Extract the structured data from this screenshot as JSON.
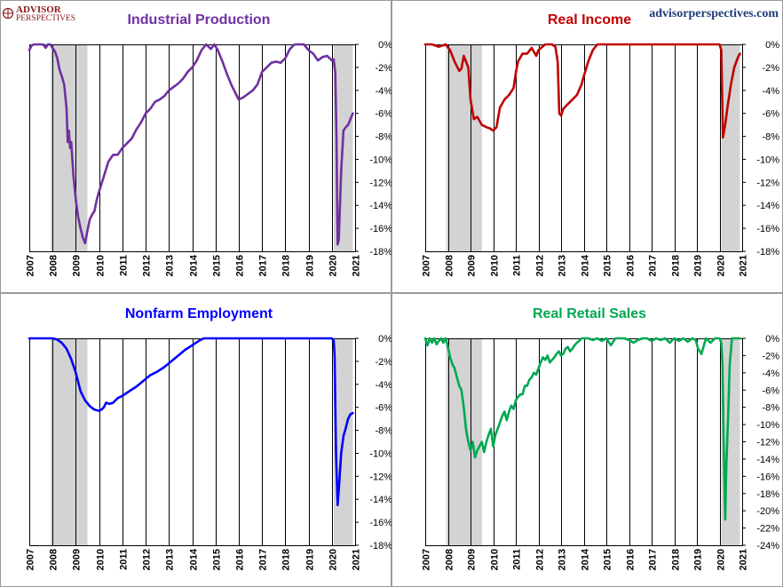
{
  "branding": {
    "logo_line1": "ADVISOR",
    "logo_line2": "PERSPECTIVES",
    "website": "advisorperspectives.com",
    "logo_color": "#8b1a1a",
    "website_color": "#1f3d7a"
  },
  "recession_color": "#d3d3d3",
  "chart_data": [
    {
      "type": "line",
      "title": "Industrial Production",
      "color": "#7030a0",
      "x_tick_labels": [
        "2007",
        "2008",
        "2009",
        "2010",
        "2011",
        "2012",
        "2013",
        "2014",
        "2015",
        "2016",
        "2017",
        "2018",
        "2019",
        "2020",
        "2021"
      ],
      "y_tick_labels": [
        "0%",
        "-2%",
        "-4%",
        "-6%",
        "-8%",
        "-10%",
        "-12%",
        "-14%",
        "-16%",
        "-18%"
      ],
      "xlim": [
        2007.0,
        2021.0
      ],
      "ylim": [
        -18,
        0
      ],
      "recessions": [
        [
          2007.92,
          2009.5
        ],
        [
          2020.08,
          2020.9
        ]
      ],
      "series": [
        {
          "x": [
            2007.0,
            2007.1,
            2007.2,
            2007.3,
            2007.4,
            2007.5,
            2007.6,
            2007.7,
            2007.8,
            2007.9,
            2008.0,
            2008.1,
            2008.2,
            2008.3,
            2008.4,
            2008.5,
            2008.6,
            2008.65,
            2008.7,
            2008.75,
            2008.8,
            2008.9,
            2009.0,
            2009.1,
            2009.2,
            2009.3,
            2009.4,
            2009.5,
            2009.6,
            2009.7,
            2009.8,
            2009.9,
            2010.0,
            2010.2,
            2010.4,
            2010.6,
            2010.8,
            2011.0,
            2011.2,
            2011.4,
            2011.6,
            2011.8,
            2012.0,
            2012.2,
            2012.4,
            2012.6,
            2012.8,
            2013.0,
            2013.2,
            2013.4,
            2013.6,
            2013.8,
            2014.0,
            2014.2,
            2014.4,
            2014.6,
            2014.8,
            2014.95,
            2015.1,
            2015.3,
            2015.5,
            2015.7,
            2015.9,
            2016.0,
            2016.2,
            2016.4,
            2016.6,
            2016.8,
            2017.0,
            2017.2,
            2017.4,
            2017.6,
            2017.8,
            2018.0,
            2018.2,
            2018.4,
            2018.6,
            2018.8,
            2019.0,
            2019.2,
            2019.4,
            2019.6,
            2019.8,
            2019.95,
            2020.0,
            2020.08,
            2020.15,
            2020.2,
            2020.25,
            2020.3,
            2020.4,
            2020.5,
            2020.6,
            2020.7,
            2020.8,
            2020.9
          ],
          "y": [
            -0.5,
            -0.1,
            0,
            0,
            0,
            0,
            0,
            -0.3,
            0,
            0,
            -0.3,
            -0.6,
            -1.2,
            -2.2,
            -2.8,
            -3.5,
            -5.5,
            -8.5,
            -7.5,
            -9.0,
            -8.5,
            -11.5,
            -13.5,
            -15.0,
            -16.0,
            -16.8,
            -17.3,
            -16.2,
            -15.2,
            -14.8,
            -14.5,
            -13.5,
            -12.8,
            -11.5,
            -10.2,
            -9.6,
            -9.6,
            -9.0,
            -8.6,
            -8.2,
            -7.4,
            -6.8,
            -6.0,
            -5.6,
            -5.0,
            -4.8,
            -4.5,
            -4.0,
            -3.7,
            -3.4,
            -3.0,
            -2.4,
            -2.0,
            -1.4,
            -0.5,
            0,
            -0.4,
            0,
            -0.5,
            -1.5,
            -2.6,
            -3.6,
            -4.4,
            -4.8,
            -4.6,
            -4.3,
            -4.0,
            -3.5,
            -2.4,
            -2.0,
            -1.6,
            -1.5,
            -1.6,
            -1.2,
            -0.4,
            0,
            0,
            0,
            -0.5,
            -0.8,
            -1.4,
            -1.1,
            -1.0,
            -1.3,
            -1.4,
            -1.3,
            -2.5,
            -8.0,
            -17.4,
            -17.0,
            -11.0,
            -7.5,
            -7.2,
            -7.0,
            -6.5,
            -6.0
          ]
        }
      ]
    },
    {
      "type": "line",
      "title": "Real Income",
      "color": "#c00000",
      "x_tick_labels": [
        "2007",
        "2008",
        "2009",
        "2010",
        "2011",
        "2012",
        "2013",
        "2014",
        "2015",
        "2016",
        "2017",
        "2018",
        "2019",
        "2020",
        "2021"
      ],
      "y_tick_labels": [
        "0%",
        "-2%",
        "-4%",
        "-6%",
        "-8%",
        "-10%",
        "-12%",
        "-14%",
        "-16%",
        "-18%"
      ],
      "xlim": [
        2007.0,
        2021.0
      ],
      "ylim": [
        -18,
        0
      ],
      "recessions": [
        [
          2007.92,
          2009.5
        ],
        [
          2020.08,
          2020.9
        ]
      ],
      "series": [
        {
          "x": [
            2007.0,
            2007.3,
            2007.6,
            2007.9,
            2008.1,
            2008.3,
            2008.5,
            2008.6,
            2008.7,
            2008.9,
            2009.0,
            2009.15,
            2009.3,
            2009.5,
            2009.7,
            2009.85,
            2010.0,
            2010.15,
            2010.3,
            2010.5,
            2010.7,
            2010.9,
            2011.0,
            2011.1,
            2011.3,
            2011.5,
            2011.7,
            2011.9,
            2012.0,
            2012.3,
            2012.6,
            2012.75,
            2012.85,
            2012.92,
            2013.0,
            2013.1,
            2013.3,
            2013.5,
            2013.7,
            2013.9,
            2014.0,
            2014.2,
            2014.4,
            2014.6,
            2014.8,
            2015.0,
            2015.2,
            2015.4,
            2015.7,
            2016.0,
            2016.5,
            2017.0,
            2017.5,
            2018.0,
            2018.5,
            2019.0,
            2019.5,
            2019.8,
            2020.0,
            2020.08,
            2020.15,
            2020.25,
            2020.35,
            2020.5,
            2020.65,
            2020.8,
            2020.9
          ],
          "y": [
            0,
            0,
            -0.2,
            0,
            -0.5,
            -1.5,
            -2.3,
            -2.1,
            -1.0,
            -2.0,
            -4.8,
            -6.5,
            -6.3,
            -7.0,
            -7.2,
            -7.3,
            -7.5,
            -7.2,
            -5.5,
            -4.8,
            -4.4,
            -3.8,
            -2.5,
            -1.5,
            -0.8,
            -0.8,
            -0.3,
            -1.0,
            -0.5,
            0,
            0,
            -0.2,
            -1.5,
            -6.0,
            -6.2,
            -5.6,
            -5.2,
            -4.8,
            -4.4,
            -3.5,
            -2.8,
            -1.5,
            -0.5,
            0,
            0,
            0,
            0,
            0,
            0,
            0,
            0,
            0,
            0,
            0,
            0,
            0,
            0,
            0,
            0,
            -0.5,
            -8.1,
            -7.0,
            -5.5,
            -3.5,
            -2.0,
            -1.2,
            -0.8
          ]
        }
      ]
    },
    {
      "type": "line",
      "title": "Nonfarm Employment",
      "color": "#0000ff",
      "x_tick_labels": [
        "2007",
        "2008",
        "2009",
        "2010",
        "2011",
        "2012",
        "2013",
        "2014",
        "2015",
        "2016",
        "2017",
        "2018",
        "2019",
        "2020",
        "2021"
      ],
      "y_tick_labels": [
        "0%",
        "-2%",
        "-4%",
        "-6%",
        "-8%",
        "-10%",
        "-12%",
        "-14%",
        "-16%",
        "-18%"
      ],
      "xlim": [
        2007.0,
        2021.0
      ],
      "ylim": [
        -18,
        0
      ],
      "recessions": [
        [
          2007.92,
          2009.5
        ],
        [
          2020.08,
          2020.9
        ]
      ],
      "series": [
        {
          "x": [
            2007.0,
            2007.5,
            2008.0,
            2008.2,
            2008.4,
            2008.6,
            2008.8,
            2009.0,
            2009.2,
            2009.4,
            2009.6,
            2009.8,
            2010.0,
            2010.1,
            2010.2,
            2010.3,
            2010.45,
            2010.6,
            2010.8,
            2011.0,
            2011.3,
            2011.6,
            2011.9,
            2012.2,
            2012.5,
            2012.8,
            2013.1,
            2013.4,
            2013.7,
            2014.0,
            2014.3,
            2014.5,
            2015.0,
            2016.0,
            2017.0,
            2018.0,
            2019.0,
            2020.0,
            2020.08,
            2020.12,
            2020.18,
            2020.25,
            2020.3,
            2020.4,
            2020.5,
            2020.6,
            2020.7,
            2020.8,
            2020.9
          ],
          "y": [
            0,
            0,
            0,
            -0.1,
            -0.4,
            -0.9,
            -1.8,
            -3.0,
            -4.6,
            -5.4,
            -5.9,
            -6.2,
            -6.3,
            -6.2,
            -6.0,
            -5.6,
            -5.7,
            -5.6,
            -5.2,
            -5.0,
            -4.6,
            -4.2,
            -3.7,
            -3.2,
            -2.9,
            -2.5,
            -2.0,
            -1.5,
            -1.0,
            -0.6,
            -0.2,
            0,
            0,
            0,
            0,
            0,
            0,
            0,
            -0.2,
            -1.5,
            -10.0,
            -14.5,
            -13.2,
            -10.0,
            -8.5,
            -7.8,
            -7.0,
            -6.6,
            -6.5
          ]
        }
      ]
    },
    {
      "type": "line",
      "title": "Real Retail Sales",
      "color": "#00a850",
      "x_tick_labels": [
        "2007",
        "2008",
        "2009",
        "2010",
        "2011",
        "2012",
        "2013",
        "2014",
        "2015",
        "2016",
        "2017",
        "2018",
        "2019",
        "2020",
        "2021"
      ],
      "y_tick_labels": [
        "0%",
        "-2%",
        "-4%",
        "-6%",
        "-8%",
        "-10%",
        "-12%",
        "-14%",
        "-16%",
        "-18%",
        "-20%",
        "-22%",
        "-24%"
      ],
      "xlim": [
        2007.0,
        2021.0
      ],
      "ylim": [
        -24,
        0
      ],
      "recessions": [
        [
          2007.92,
          2009.5
        ],
        [
          2020.08,
          2020.9
        ]
      ],
      "series": [
        {
          "x": [
            2007.0,
            2007.1,
            2007.2,
            2007.3,
            2007.4,
            2007.5,
            2007.6,
            2007.7,
            2007.8,
            2007.9,
            2008.0,
            2008.1,
            2008.2,
            2008.3,
            2008.4,
            2008.5,
            2008.6,
            2008.7,
            2008.8,
            2008.9,
            2009.0,
            2009.1,
            2009.2,
            2009.3,
            2009.4,
            2009.5,
            2009.6,
            2009.7,
            2009.8,
            2009.9,
            2010.0,
            2010.1,
            2010.2,
            2010.3,
            2010.4,
            2010.5,
            2010.6,
            2010.7,
            2010.8,
            2010.9,
            2011.0,
            2011.1,
            2011.2,
            2011.3,
            2011.4,
            2011.5,
            2011.6,
            2011.7,
            2011.8,
            2011.9,
            2012.0,
            2012.1,
            2012.2,
            2012.3,
            2012.4,
            2012.5,
            2012.6,
            2012.7,
            2012.8,
            2012.9,
            2013.0,
            2013.1,
            2013.2,
            2013.3,
            2013.4,
            2013.5,
            2013.6,
            2013.7,
            2013.8,
            2013.9,
            2014.0,
            2014.2,
            2014.4,
            2014.6,
            2014.8,
            2015.0,
            2015.2,
            2015.4,
            2015.6,
            2015.8,
            2016.0,
            2016.2,
            2016.4,
            2016.6,
            2016.8,
            2017.0,
            2017.2,
            2017.4,
            2017.6,
            2017.8,
            2018.0,
            2018.2,
            2018.4,
            2018.6,
            2018.8,
            2018.95,
            2019.05,
            2019.2,
            2019.4,
            2019.6,
            2019.8,
            2020.0,
            2020.08,
            2020.13,
            2020.18,
            2020.25,
            2020.3,
            2020.38,
            2020.45,
            2020.55,
            2020.7,
            2020.9
          ],
          "y": [
            0,
            -0.8,
            0,
            -0.5,
            0,
            -0.7,
            -0.3,
            0,
            -0.5,
            0,
            -1.0,
            -2.2,
            -3.0,
            -3.5,
            -4.5,
            -5.5,
            -6.0,
            -8.0,
            -10.5,
            -12.0,
            -13.0,
            -12.0,
            -13.8,
            -13.0,
            -12.5,
            -12.0,
            -13.2,
            -12.0,
            -11.2,
            -10.5,
            -12.5,
            -11.2,
            -10.5,
            -9.8,
            -9.0,
            -8.5,
            -9.5,
            -8.5,
            -7.8,
            -8.2,
            -7.2,
            -6.8,
            -6.5,
            -6.5,
            -5.5,
            -5.5,
            -4.8,
            -4.5,
            -4.0,
            -4.2,
            -3.5,
            -2.8,
            -2.2,
            -2.5,
            -2.0,
            -2.8,
            -2.5,
            -2.2,
            -1.8,
            -1.5,
            -2.0,
            -1.8,
            -1.2,
            -1.0,
            -1.5,
            -1.2,
            -0.8,
            -0.5,
            -0.3,
            0,
            0,
            0,
            -0.2,
            0,
            -0.3,
            0,
            -0.8,
            0,
            0,
            0,
            -0.2,
            -0.5,
            -0.2,
            0,
            0,
            -0.3,
            0,
            -0.2,
            0,
            -0.5,
            0,
            -0.3,
            0,
            -0.4,
            0,
            -0.2,
            -1.2,
            -1.8,
            0,
            -0.5,
            0,
            0,
            -0.5,
            -3.0,
            -12.0,
            -21.0,
            -15.0,
            -9.0,
            -3.0,
            0,
            0,
            0
          ]
        }
      ]
    }
  ]
}
